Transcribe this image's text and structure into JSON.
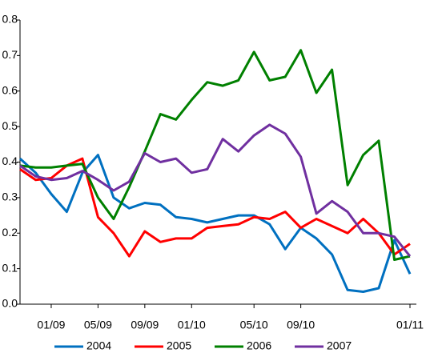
{
  "chart_data": {
    "type": "line",
    "categories": [
      null,
      null,
      "01/09",
      null,
      null,
      "05/09",
      null,
      null,
      "09/09",
      null,
      null,
      "01/10",
      null,
      null,
      null,
      "05/10",
      null,
      null,
      "09/10",
      null,
      null,
      null,
      null,
      null,
      null,
      "01/11"
    ],
    "series": [
      {
        "name": "2004",
        "color": "#0070c0",
        "values": [
          0.41,
          0.37,
          0.31,
          0.26,
          0.37,
          0.42,
          0.3,
          0.27,
          0.285,
          0.28,
          0.245,
          0.24,
          0.23,
          0.24,
          0.25,
          0.25,
          0.225,
          0.155,
          0.215,
          0.185,
          0.14,
          0.04,
          0.035,
          0.045,
          0.18,
          0.085
        ]
      },
      {
        "name": "2005",
        "color": "#ff0000",
        "values": [
          0.38,
          0.35,
          0.355,
          0.39,
          0.41,
          0.245,
          0.2,
          0.135,
          0.205,
          0.175,
          0.185,
          0.185,
          0.215,
          0.22,
          0.225,
          0.245,
          0.24,
          0.26,
          0.215,
          0.24,
          0.22,
          0.2,
          0.24,
          0.2,
          0.14,
          0.17
        ]
      },
      {
        "name": "2006",
        "color": "#008000",
        "values": [
          0.39,
          0.385,
          0.385,
          0.39,
          0.395,
          0.3,
          0.24,
          0.33,
          0.43,
          0.535,
          0.52,
          0.575,
          0.625,
          0.615,
          0.63,
          0.71,
          0.63,
          0.64,
          0.715,
          0.595,
          0.66,
          0.335,
          0.42,
          0.46,
          0.125,
          0.135
        ]
      },
      {
        "name": "2007",
        "color": "#7030a0",
        "values": [
          0.39,
          0.36,
          0.35,
          0.355,
          0.375,
          0.35,
          0.32,
          0.345,
          0.425,
          0.4,
          0.41,
          0.37,
          0.38,
          0.465,
          0.43,
          0.475,
          0.505,
          0.48,
          0.415,
          0.255,
          0.29,
          0.26,
          0.2,
          0.2,
          0.19,
          0.135
        ]
      }
    ],
    "ylim": [
      0,
      0.8
    ],
    "yticks": [
      {
        "value": 0,
        "label": "0.0"
      },
      0.1,
      0.2,
      0.3,
      0.4,
      0.5,
      0.6,
      0.7,
      0.8
    ],
    "legend": "bottom"
  }
}
